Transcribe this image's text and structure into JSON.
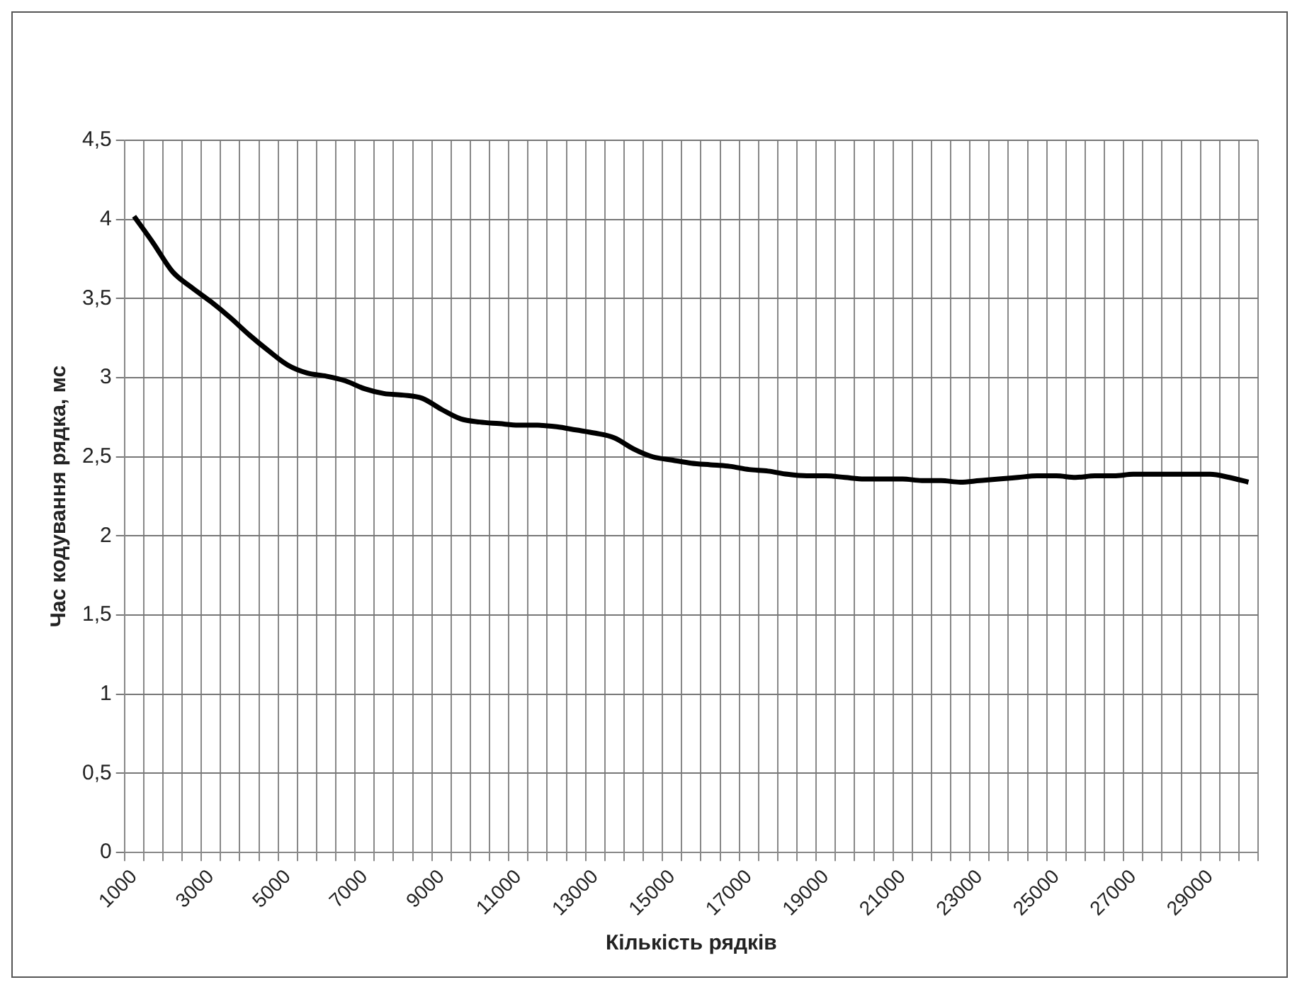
{
  "chart_data": {
    "type": "line",
    "xlabel": "Кількість рядків",
    "ylabel": "Час кодування рядка, мс",
    "categories": [
      "1000",
      null,
      null,
      null,
      "3000",
      null,
      null,
      null,
      "5000",
      null,
      null,
      null,
      "7000",
      null,
      null,
      null,
      "9000",
      null,
      null,
      null,
      "11000",
      null,
      null,
      null,
      "13000",
      null,
      null,
      null,
      "15000",
      null,
      null,
      null,
      "17000",
      null,
      null,
      null,
      "19000",
      null,
      null,
      null,
      "21000",
      null,
      null,
      null,
      "23000",
      null,
      null,
      null,
      "25000",
      null,
      null,
      null,
      "27000",
      null,
      null,
      null,
      "29000",
      null,
      null
    ],
    "series": [
      {
        "color": "#000000",
        "values": [
          4.02,
          3.85,
          3.67,
          3.57,
          3.48,
          3.38,
          3.27,
          3.17,
          3.08,
          3.03,
          3.01,
          2.98,
          2.93,
          2.9,
          2.89,
          2.87,
          2.8,
          2.74,
          2.72,
          2.71,
          2.7,
          2.7,
          2.69,
          2.67,
          2.65,
          2.62,
          2.55,
          2.5,
          2.48,
          2.46,
          2.45,
          2.44,
          2.42,
          2.41,
          2.39,
          2.38,
          2.38,
          2.37,
          2.36,
          2.36,
          2.36,
          2.35,
          2.35,
          2.34,
          2.35,
          2.36,
          2.37,
          2.38,
          2.38,
          2.37,
          2.38,
          2.38,
          2.39,
          2.39,
          2.39,
          2.39,
          2.39,
          2.37,
          2.34
        ]
      }
    ],
    "ylim": [
      0,
      4.5
    ],
    "yticks": [
      0,
      {
        "value": 0.5,
        "label": "0,5"
      },
      1,
      {
        "value": 1.5,
        "label": "1,5"
      },
      2,
      {
        "value": 2.5,
        "label": "2,5"
      },
      3,
      {
        "value": 3.5,
        "label": "3,5"
      },
      4,
      {
        "value": 4.5,
        "label": "4,5"
      }
    ],
    "grid": true,
    "legend": false,
    "marker": "none",
    "line_style": "solid"
  }
}
